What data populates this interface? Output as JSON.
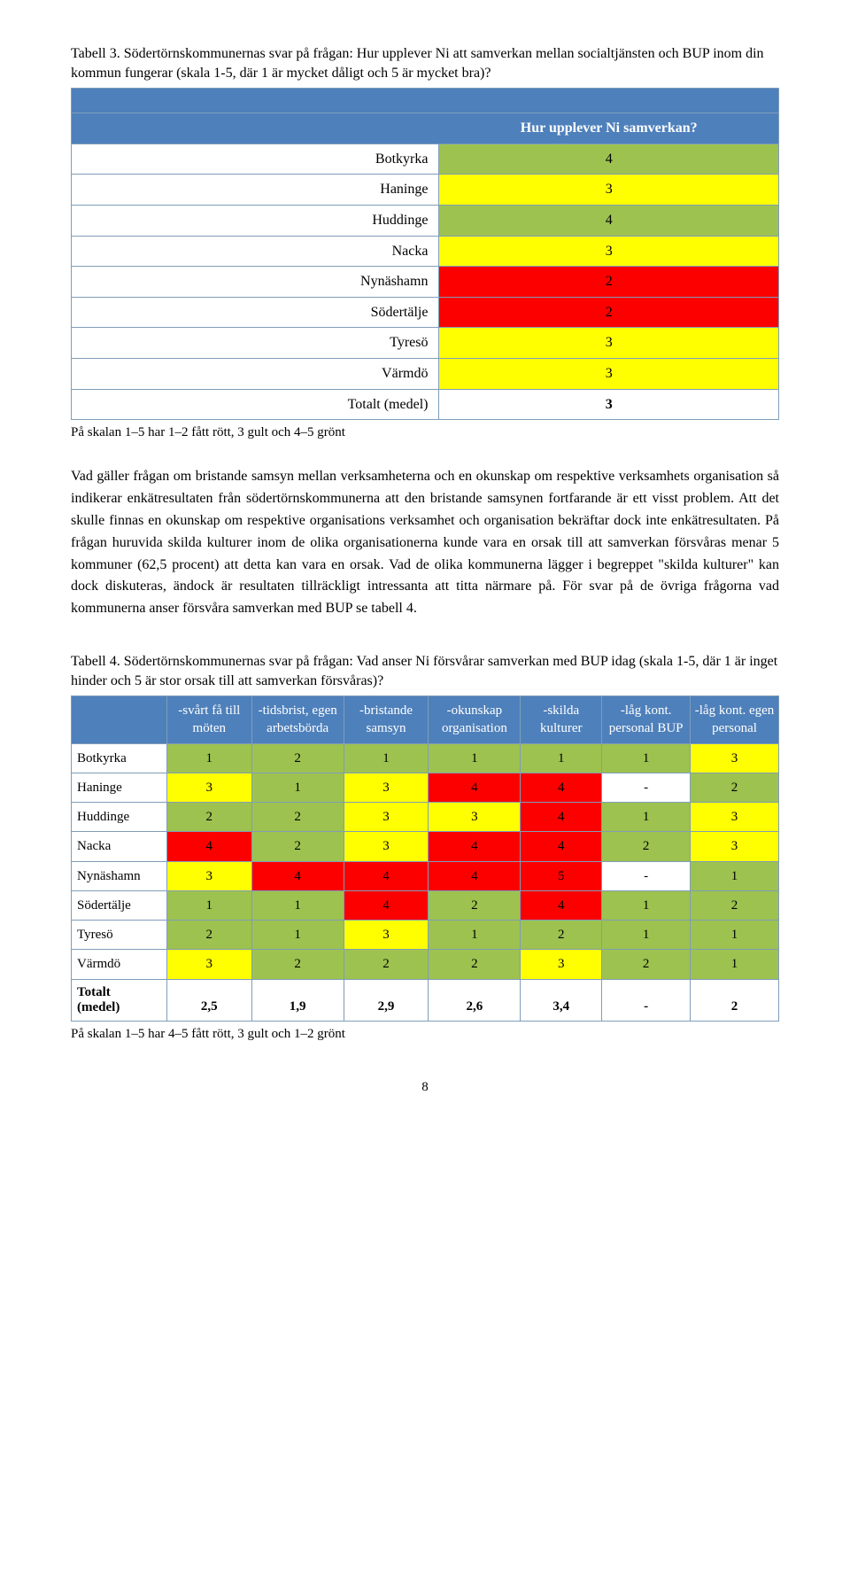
{
  "colors": {
    "header_bg": "#4e80bb",
    "header_fg": "#ffffff",
    "cell_border": "#7f9db9",
    "green": "#9dc24f",
    "yellow": "#ffff00",
    "red": "#fc0000",
    "white": "#ffffff"
  },
  "table3": {
    "caption": "Tabell 3. Södertörnskommunernas svar på frågan: Hur upplever Ni att samverkan mellan socialtjänsten och BUP inom din kommun fungerar (skala 1-5, där 1 är mycket dåligt och 5 är mycket bra)?",
    "header": "Hur upplever Ni samverkan?",
    "rows": [
      {
        "label": "Botkyrka",
        "value": "4",
        "color": "green"
      },
      {
        "label": "Haninge",
        "value": "3",
        "color": "yellow"
      },
      {
        "label": "Huddinge",
        "value": "4",
        "color": "green"
      },
      {
        "label": "Nacka",
        "value": "3",
        "color": "yellow"
      },
      {
        "label": "Nynäshamn",
        "value": "2",
        "color": "red"
      },
      {
        "label": "Södertälje",
        "value": "2",
        "color": "red"
      },
      {
        "label": "Tyresö",
        "value": "3",
        "color": "yellow"
      },
      {
        "label": "Värmdö",
        "value": "3",
        "color": "yellow"
      },
      {
        "label": "Totalt (medel)",
        "value": "3",
        "color": "white"
      }
    ],
    "footnote": "På skalan 1–5 har 1–2 fått rött, 3 gult och 4–5 grönt"
  },
  "paragraph": "Vad gäller frågan om bristande samsyn mellan verksamheterna och en okunskap om respektive verksamhets organisation så indikerar enkätresultaten från södertörnskommunerna att den bristande samsynen fortfarande är ett visst problem. Att det skulle finnas en okunskap om respektive organisations verksamhet och organisation bekräftar dock inte enkätresultaten. På frågan huruvida skilda kulturer inom de olika organisationerna kunde vara en orsak till att samverkan försvåras menar 5 kommuner (62,5 procent) att detta kan vara en orsak. Vad de olika kommunerna lägger i begreppet \"skilda kulturer\" kan dock diskuteras, ändock är resultaten tillräckligt intressanta att titta närmare på. För svar på de övriga frågorna vad kommunerna anser försvåra samverkan med BUP se tabell 4.",
  "table4": {
    "caption": "Tabell 4. Södertörnskommunernas svar på frågan: Vad anser Ni försvårar samverkan med BUP idag (skala 1-5, där 1 är inget hinder och 5 är stor orsak till att samverkan försvåras)?",
    "columns": [
      "",
      "-svårt få till möten",
      "-tidsbrist, egen arbetsbörda",
      "-bristande samsyn",
      "-okunskap organisation",
      "-skilda kulturer",
      "-låg kont. personal BUP",
      "-låg kont. egen personal"
    ],
    "rows": [
      {
        "label": "Botkyrka",
        "cells": [
          {
            "v": "1",
            "c": "green"
          },
          {
            "v": "2",
            "c": "green"
          },
          {
            "v": "1",
            "c": "green"
          },
          {
            "v": "1",
            "c": "green"
          },
          {
            "v": "1",
            "c": "green"
          },
          {
            "v": "1",
            "c": "green"
          },
          {
            "v": "3",
            "c": "yellow"
          }
        ]
      },
      {
        "label": "Haninge",
        "cells": [
          {
            "v": "3",
            "c": "yellow"
          },
          {
            "v": "1",
            "c": "green"
          },
          {
            "v": "3",
            "c": "yellow"
          },
          {
            "v": "4",
            "c": "red"
          },
          {
            "v": "4",
            "c": "red"
          },
          {
            "v": "-",
            "c": "white"
          },
          {
            "v": "2",
            "c": "green"
          }
        ]
      },
      {
        "label": "Huddinge",
        "cells": [
          {
            "v": "2",
            "c": "green"
          },
          {
            "v": "2",
            "c": "green"
          },
          {
            "v": "3",
            "c": "yellow"
          },
          {
            "v": "3",
            "c": "yellow"
          },
          {
            "v": "4",
            "c": "red"
          },
          {
            "v": "1",
            "c": "green"
          },
          {
            "v": "3",
            "c": "yellow"
          }
        ]
      },
      {
        "label": "Nacka",
        "cells": [
          {
            "v": "4",
            "c": "red"
          },
          {
            "v": "2",
            "c": "green"
          },
          {
            "v": "3",
            "c": "yellow"
          },
          {
            "v": "4",
            "c": "red"
          },
          {
            "v": "4",
            "c": "red"
          },
          {
            "v": "2",
            "c": "green"
          },
          {
            "v": "3",
            "c": "yellow"
          }
        ]
      },
      {
        "label": "Nynäshamn",
        "cells": [
          {
            "v": "3",
            "c": "yellow"
          },
          {
            "v": "4",
            "c": "red"
          },
          {
            "v": "4",
            "c": "red"
          },
          {
            "v": "4",
            "c": "red"
          },
          {
            "v": "5",
            "c": "red"
          },
          {
            "v": "-",
            "c": "white"
          },
          {
            "v": "1",
            "c": "green"
          }
        ]
      },
      {
        "label": "Södertälje",
        "cells": [
          {
            "v": "1",
            "c": "green"
          },
          {
            "v": "1",
            "c": "green"
          },
          {
            "v": "4",
            "c": "red"
          },
          {
            "v": "2",
            "c": "green"
          },
          {
            "v": "4",
            "c": "red"
          },
          {
            "v": "1",
            "c": "green"
          },
          {
            "v": "2",
            "c": "green"
          }
        ]
      },
      {
        "label": "Tyresö",
        "cells": [
          {
            "v": "2",
            "c": "green"
          },
          {
            "v": "1",
            "c": "green"
          },
          {
            "v": "3",
            "c": "yellow"
          },
          {
            "v": "1",
            "c": "green"
          },
          {
            "v": "2",
            "c": "green"
          },
          {
            "v": "1",
            "c": "green"
          },
          {
            "v": "1",
            "c": "green"
          }
        ]
      },
      {
        "label": "Värmdö",
        "cells": [
          {
            "v": "3",
            "c": "yellow"
          },
          {
            "v": "2",
            "c": "green"
          },
          {
            "v": "2",
            "c": "green"
          },
          {
            "v": "2",
            "c": "green"
          },
          {
            "v": "3",
            "c": "yellow"
          },
          {
            "v": "2",
            "c": "green"
          },
          {
            "v": "1",
            "c": "green"
          }
        ]
      }
    ],
    "total_label": "Totalt (medel)",
    "total_values": [
      "2,5",
      "1,9",
      "2,9",
      "2,6",
      "3,4",
      "-",
      "2"
    ],
    "footnote": "På skalan 1–5 har 4–5 fått rött, 3 gult och 1–2 grönt"
  },
  "page_number": "8"
}
